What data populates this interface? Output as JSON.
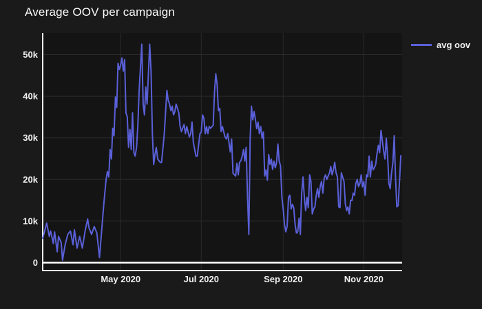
{
  "title": "Average OOV per campaign",
  "legend": {
    "items": [
      {
        "label": "avg oov",
        "color": "#5a60d8"
      }
    ]
  },
  "colors": {
    "paper_bg": "#1a1a1a",
    "plot_bg": "#141414",
    "grid": "#2a2a2a",
    "axis_line": "#f5f5f5",
    "zero_line": "#ffffff",
    "tick_label": "#f0f0f0",
    "title": "#fbfbfb",
    "line": "#5a60d8"
  },
  "chart_data": {
    "type": "line",
    "title": "Average OOV per campaign",
    "xlabel": "",
    "ylabel": "",
    "grid": true,
    "legend_position": "top-right",
    "xlim": [
      "2020-03-03",
      "2020-11-30"
    ],
    "ylim": [
      -1900,
      55200
    ],
    "x_ticks": [
      {
        "date": "2020-05-01",
        "label": "May 2020"
      },
      {
        "date": "2020-07-01",
        "label": "Jul 2020"
      },
      {
        "date": "2020-09-01",
        "label": "Sep 2020"
      },
      {
        "date": "2020-11-01",
        "label": "Nov 2020"
      }
    ],
    "y_ticks": [
      {
        "value": 0,
        "label": "0"
      },
      {
        "value": 10000,
        "label": "10k"
      },
      {
        "value": 20000,
        "label": "20k"
      },
      {
        "value": 30000,
        "label": "30k"
      },
      {
        "value": 40000,
        "label": "40k"
      },
      {
        "value": 50000,
        "label": "50k"
      }
    ],
    "series": [
      {
        "name": "avg oov",
        "color": "#5a60d8",
        "x": [
          "2020-03-03",
          "2020-03-04",
          "2020-03-06",
          "2020-03-08",
          "2020-03-09",
          "2020-03-11",
          "2020-03-12",
          "2020-03-13",
          "2020-03-14",
          "2020-03-15",
          "2020-03-17",
          "2020-03-18",
          "2020-03-20",
          "2020-03-22",
          "2020-03-24",
          "2020-03-26",
          "2020-03-27",
          "2020-03-29",
          "2020-03-31",
          "2020-04-02",
          "2020-04-04",
          "2020-04-06",
          "2020-04-07",
          "2020-04-09",
          "2020-04-11",
          "2020-04-13",
          "2020-04-15",
          "2020-04-16",
          "2020-04-17",
          "2020-04-18",
          "2020-04-19",
          "2020-04-20",
          "2020-04-21",
          "2020-04-22",
          "2020-04-23",
          "2020-04-24",
          "2020-04-25",
          "2020-04-26",
          "2020-04-27",
          "2020-04-28",
          "2020-04-29",
          "2020-04-30",
          "2020-05-01",
          "2020-05-02",
          "2020-05-03",
          "2020-05-04",
          "2020-05-05",
          "2020-05-06",
          "2020-05-07",
          "2020-05-08",
          "2020-05-09",
          "2020-05-10",
          "2020-05-11",
          "2020-05-12",
          "2020-05-13",
          "2020-05-14",
          "2020-05-15",
          "2020-05-16",
          "2020-05-17",
          "2020-05-18",
          "2020-05-19",
          "2020-05-20",
          "2020-05-21",
          "2020-05-23",
          "2020-05-24",
          "2020-05-25",
          "2020-05-26",
          "2020-05-27",
          "2020-05-28",
          "2020-05-29",
          "2020-05-31",
          "2020-06-01",
          "2020-06-03",
          "2020-06-05",
          "2020-06-06",
          "2020-06-07",
          "2020-06-08",
          "2020-06-09",
          "2020-06-10",
          "2020-06-11",
          "2020-06-12",
          "2020-06-14",
          "2020-06-15",
          "2020-06-16",
          "2020-06-18",
          "2020-06-19",
          "2020-06-20",
          "2020-06-22",
          "2020-06-23",
          "2020-06-24",
          "2020-06-25",
          "2020-06-27",
          "2020-06-28",
          "2020-06-30",
          "2020-07-01",
          "2020-07-02",
          "2020-07-03",
          "2020-07-04",
          "2020-07-05",
          "2020-07-06",
          "2020-07-07",
          "2020-07-08",
          "2020-07-10",
          "2020-07-11",
          "2020-07-12",
          "2020-07-13",
          "2020-07-14",
          "2020-07-15",
          "2020-07-16",
          "2020-07-17",
          "2020-07-19",
          "2020-07-20",
          "2020-07-21",
          "2020-07-23",
          "2020-07-24",
          "2020-07-25",
          "2020-07-27",
          "2020-07-28",
          "2020-07-29",
          "2020-07-30",
          "2020-07-31",
          "2020-08-01",
          "2020-08-02",
          "2020-08-03",
          "2020-08-04",
          "2020-08-05",
          "2020-08-06",
          "2020-08-07",
          "2020-08-08",
          "2020-08-09",
          "2020-08-10",
          "2020-08-11",
          "2020-08-12",
          "2020-08-13",
          "2020-08-14",
          "2020-08-15",
          "2020-08-16",
          "2020-08-17",
          "2020-08-18",
          "2020-08-19",
          "2020-08-20",
          "2020-08-21",
          "2020-08-22",
          "2020-08-23",
          "2020-08-24",
          "2020-08-25",
          "2020-08-26",
          "2020-08-27",
          "2020-08-28",
          "2020-08-29",
          "2020-08-30",
          "2020-08-31",
          "2020-09-01",
          "2020-09-02",
          "2020-09-03",
          "2020-09-04",
          "2020-09-05",
          "2020-09-06",
          "2020-09-07",
          "2020-09-08",
          "2020-09-09",
          "2020-09-10",
          "2020-09-11",
          "2020-09-12",
          "2020-09-13",
          "2020-09-14",
          "2020-09-15",
          "2020-09-16",
          "2020-09-17",
          "2020-09-18",
          "2020-09-19",
          "2020-09-20",
          "2020-09-21",
          "2020-09-22",
          "2020-09-23",
          "2020-09-24",
          "2020-09-25",
          "2020-09-26",
          "2020-09-27",
          "2020-09-28",
          "2020-09-29",
          "2020-09-30",
          "2020-10-01",
          "2020-10-02",
          "2020-10-03",
          "2020-10-04",
          "2020-10-05",
          "2020-10-06",
          "2020-10-07",
          "2020-10-08",
          "2020-10-09",
          "2020-10-10",
          "2020-10-11",
          "2020-10-12",
          "2020-10-13",
          "2020-10-14",
          "2020-10-15",
          "2020-10-16",
          "2020-10-17",
          "2020-10-18",
          "2020-10-19",
          "2020-10-20",
          "2020-10-21",
          "2020-10-22",
          "2020-10-23",
          "2020-10-24",
          "2020-10-25",
          "2020-10-26",
          "2020-10-27",
          "2020-10-28",
          "2020-10-29",
          "2020-10-30",
          "2020-10-31",
          "2020-11-01",
          "2020-11-02",
          "2020-11-03",
          "2020-11-04",
          "2020-11-05",
          "2020-11-06",
          "2020-11-07",
          "2020-11-08",
          "2020-11-09",
          "2020-11-10",
          "2020-11-11",
          "2020-11-12",
          "2020-11-13",
          "2020-11-14",
          "2020-11-15",
          "2020-11-16",
          "2020-11-17",
          "2020-11-18",
          "2020-11-19",
          "2020-11-20",
          "2020-11-21",
          "2020-11-22",
          "2020-11-23",
          "2020-11-24",
          "2020-11-25",
          "2020-11-26",
          "2020-11-27",
          "2020-11-28",
          "2020-11-29"
        ],
        "y": [
          5800,
          7000,
          9500,
          6300,
          7600,
          4600,
          7400,
          5000,
          2600,
          6300,
          4800,
          600,
          4300,
          6800,
          7600,
          4300,
          7900,
          3500,
          6300,
          3500,
          7400,
          10500,
          8400,
          6800,
          8700,
          7100,
          1200,
          5200,
          9200,
          13200,
          16700,
          20000,
          21900,
          20600,
          27200,
          24900,
          32300,
          30500,
          39800,
          37300,
          47900,
          46400,
          47500,
          49200,
          46000,
          48800,
          36000,
          35100,
          27700,
          32000,
          27200,
          36000,
          26500,
          25600,
          27700,
          33000,
          41400,
          47000,
          52500,
          38100,
          35500,
          42200,
          38100,
          52500,
          45900,
          31000,
          23600,
          26000,
          27700,
          24900,
          24100,
          24100,
          31000,
          41400,
          39000,
          38100,
          36500,
          37600,
          35500,
          36300,
          38100,
          36000,
          32700,
          31500,
          33200,
          31000,
          32700,
          30200,
          31000,
          33800,
          28900,
          25600,
          25600,
          31000,
          31400,
          35500,
          34700,
          31000,
          32700,
          31000,
          32700,
          32300,
          33000,
          40900,
          45400,
          42900,
          36500,
          37100,
          31500,
          32700,
          30200,
          29700,
          31000,
          26600,
          29700,
          21500,
          20800,
          23900,
          21100,
          24100,
          24500,
          25600,
          27200,
          24400,
          27700,
          15700,
          6800,
          29900,
          37600,
          34300,
          36300,
          34300,
          32200,
          33800,
          31000,
          32700,
          29900,
          31400,
          20800,
          22300,
          19800,
          26000,
          23600,
          24900,
          22400,
          24400,
          22800,
          24100,
          28500,
          24400,
          23300,
          15700,
          12900,
          9100,
          7400,
          8700,
          15700,
          16200,
          12900,
          14000,
          13200,
          9100,
          7100,
          7400,
          10700,
          6800,
          16700,
          20600,
          15700,
          12500,
          15700,
          13200,
          21100,
          19500,
          11700,
          12900,
          13400,
          16200,
          17800,
          15700,
          18300,
          19500,
          16700,
          20300,
          21100,
          20000,
          20800,
          21500,
          23100,
          21100,
          22300,
          24100,
          21600,
          20600,
          13400,
          13200,
          21600,
          20600,
          19500,
          14200,
          12500,
          13400,
          11700,
          15000,
          14900,
          16700,
          16200,
          19100,
          20000,
          18300,
          19000,
          21100,
          18200,
          19500,
          16200,
          21100,
          20600,
          25600,
          20600,
          24400,
          22300,
          22800,
          23600,
          26100,
          28200,
          26400,
          31800,
          29400,
          26900,
          24900,
          29900,
          25700,
          19000,
          17800,
          21500,
          24100,
          30500,
          20600,
          13400,
          13700,
          19500,
          25700
        ]
      }
    ]
  }
}
